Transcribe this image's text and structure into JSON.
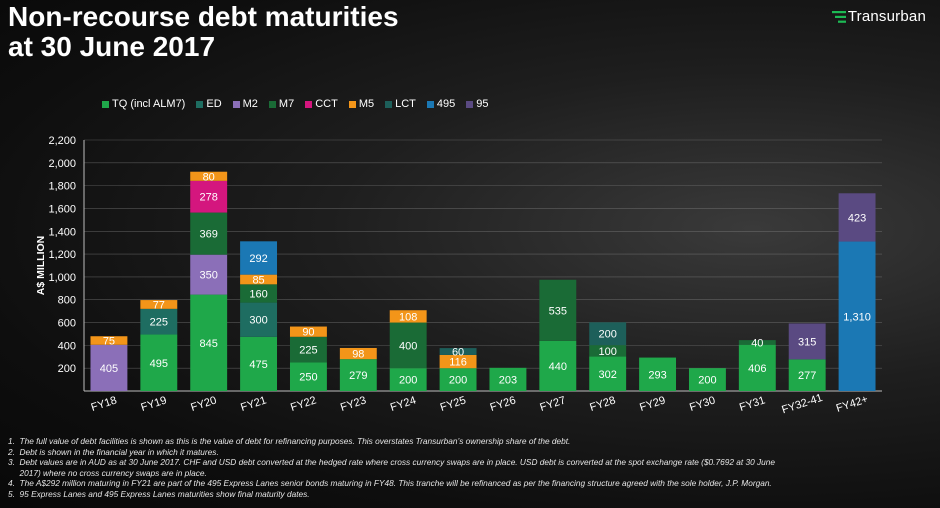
{
  "title_line1": "Non-recourse debt maturities",
  "title_line2": "at 30 June 2017",
  "logo": {
    "text": "Transurban",
    "icon": "transurban-logo-icon",
    "color": "#1db954"
  },
  "chart_data": {
    "type": "bar",
    "stacked": true,
    "ylabel": "A$ MILLION",
    "xlabel": "",
    "ylim": [
      0,
      2200
    ],
    "yticks": [
      200,
      400,
      600,
      800,
      1000,
      1200,
      1400,
      1600,
      1800,
      2000,
      2200
    ],
    "ytick_labels": [
      "200",
      "400",
      "600",
      "800",
      "1,000",
      "1,200",
      "1,400",
      "1,600",
      "1,800",
      "2,000",
      "2,200"
    ],
    "grid": true,
    "legend_position": "top-left",
    "categories": [
      "FY18",
      "FY19",
      "FY20",
      "FY21",
      "FY22",
      "FY23",
      "FY24",
      "FY25",
      "FY26",
      "FY27",
      "FY28",
      "FY29",
      "FY30",
      "FY31",
      "FY32-41",
      "FY42+"
    ],
    "series": [
      {
        "name": "TQ (incl ALM7)",
        "color": "#1fa84a",
        "values": [
          0,
          495,
          845,
          475,
          250,
          279,
          200,
          200,
          203,
          440,
          302,
          293,
          200,
          406,
          277,
          0
        ]
      },
      {
        "name": "ED",
        "color": "#1e6d61",
        "values": [
          0,
          225,
          0,
          300,
          0,
          0,
          0,
          0,
          0,
          0,
          0,
          0,
          0,
          0,
          0,
          0
        ]
      },
      {
        "name": "M2",
        "color": "#8b6fb8",
        "values": [
          405,
          0,
          350,
          0,
          0,
          0,
          0,
          0,
          0,
          0,
          0,
          0,
          0,
          0,
          0,
          0
        ]
      },
      {
        "name": "M7",
        "color": "#1a6b36",
        "values": [
          0,
          0,
          369,
          160,
          225,
          0,
          400,
          0,
          0,
          535,
          100,
          0,
          0,
          40,
          0,
          0
        ]
      },
      {
        "name": "CCT",
        "color": "#d4167e",
        "values": [
          0,
          0,
          278,
          0,
          0,
          0,
          0,
          0,
          0,
          0,
          0,
          0,
          0,
          0,
          0,
          0
        ]
      },
      {
        "name": "M5",
        "color": "#f39519",
        "values": [
          75,
          77,
          80,
          85,
          90,
          98,
          108,
          116,
          0,
          0,
          0,
          0,
          0,
          0,
          0,
          0
        ]
      },
      {
        "name": "LCT",
        "color": "#1d5f5a",
        "values": [
          0,
          0,
          0,
          0,
          0,
          0,
          0,
          60,
          0,
          0,
          200,
          0,
          0,
          0,
          0,
          0
        ]
      },
      {
        "name": "495",
        "color": "#1b78b4",
        "values": [
          0,
          0,
          0,
          292,
          0,
          0,
          0,
          0,
          0,
          0,
          0,
          0,
          0,
          0,
          0,
          1310
        ]
      },
      {
        "name": "95",
        "color": "#5a4a82",
        "values": [
          0,
          0,
          0,
          0,
          0,
          0,
          0,
          0,
          0,
          0,
          0,
          0,
          0,
          0,
          315,
          423
        ]
      }
    ],
    "segment_labels": [
      {
        "category": "FY18",
        "series": "M2",
        "text": "405"
      },
      {
        "category": "FY18",
        "series": "M5",
        "text": "75"
      },
      {
        "category": "FY19",
        "series": "TQ (incl ALM7)",
        "text": "495"
      },
      {
        "category": "FY19",
        "series": "ED",
        "text": "225"
      },
      {
        "category": "FY19",
        "series": "M5",
        "text": "77"
      },
      {
        "category": "FY20",
        "series": "TQ (incl ALM7)",
        "text": "845"
      },
      {
        "category": "FY20",
        "series": "M2",
        "text": "350"
      },
      {
        "category": "FY20",
        "series": "M7",
        "text": "369"
      },
      {
        "category": "FY20",
        "series": "CCT",
        "text": "278"
      },
      {
        "category": "FY20",
        "series": "M5",
        "text": "80"
      },
      {
        "category": "FY21",
        "series": "TQ (incl ALM7)",
        "text": "475"
      },
      {
        "category": "FY21",
        "series": "ED",
        "text": "300"
      },
      {
        "category": "FY21",
        "series": "M5",
        "text": "85"
      },
      {
        "category": "FY21",
        "series": "M7",
        "text": "160"
      },
      {
        "category": "FY21",
        "series": "495",
        "text": "292"
      },
      {
        "category": "FY22",
        "series": "TQ (incl ALM7)",
        "text": "250"
      },
      {
        "category": "FY22",
        "series": "M7",
        "text": "225"
      },
      {
        "category": "FY22",
        "series": "M5",
        "text": "90"
      },
      {
        "category": "FY23",
        "series": "TQ (incl ALM7)",
        "text": "279"
      },
      {
        "category": "FY23",
        "series": "M5",
        "text": "98"
      },
      {
        "category": "FY24",
        "series": "TQ (incl ALM7)",
        "text": "200"
      },
      {
        "category": "FY24",
        "series": "M7",
        "text": "400"
      },
      {
        "category": "FY24",
        "series": "M5",
        "text": "108"
      },
      {
        "category": "FY25",
        "series": "TQ (incl ALM7)",
        "text": "200"
      },
      {
        "category": "FY25",
        "series": "M5",
        "text": "116"
      },
      {
        "category": "FY25",
        "series": "LCT",
        "text": "60"
      },
      {
        "category": "FY26",
        "series": "TQ (incl ALM7)",
        "text": "203"
      },
      {
        "category": "FY27",
        "series": "TQ (incl ALM7)",
        "text": "440"
      },
      {
        "category": "FY27",
        "series": "M7",
        "text": "535"
      },
      {
        "category": "FY28",
        "series": "TQ (incl ALM7)",
        "text": "302"
      },
      {
        "category": "FY28",
        "series": "M7",
        "text": "100"
      },
      {
        "category": "FY28",
        "series": "LCT",
        "text": "200"
      },
      {
        "category": "FY29",
        "series": "TQ (incl ALM7)",
        "text": "293"
      },
      {
        "category": "FY30",
        "series": "TQ (incl ALM7)",
        "text": "200"
      },
      {
        "category": "FY31",
        "series": "TQ (incl ALM7)",
        "text": "406"
      },
      {
        "category": "FY31",
        "series": "M7",
        "text": "40"
      },
      {
        "category": "FY32-41",
        "series": "TQ (incl ALM7)",
        "text": "277"
      },
      {
        "category": "FY32-41",
        "series": "95",
        "text": "315"
      },
      {
        "category": "FY42+",
        "series": "495",
        "text": "1,310"
      },
      {
        "category": "FY42+",
        "series": "95",
        "text": "423"
      }
    ]
  },
  "footnotes": [
    "1.  The full value of debt facilities is shown as this is the value of debt for refinancing purposes. This overstates Transurban’s ownership share of the debt.",
    "2.  Debt is shown in the financial year in which it matures.",
    "3.  Debt values are in AUD as at 30 June 2017. CHF and USD debt converted at the hedged rate where cross currency swaps are in place. USD debt is converted at the spot exchange rate ($0.7692 at 30 June",
    "     2017) where no cross currency swaps are in place.",
    "4.  The A$292 million maturing in FY21 are part of the 495 Express Lanes senior bonds maturing in FY48. This tranche will be refinanced as per the financing structure agreed with the sole holder, J.P. Morgan.",
    "5.  95 Express Lanes and 495 Express Lanes maturities show final maturity dates."
  ]
}
